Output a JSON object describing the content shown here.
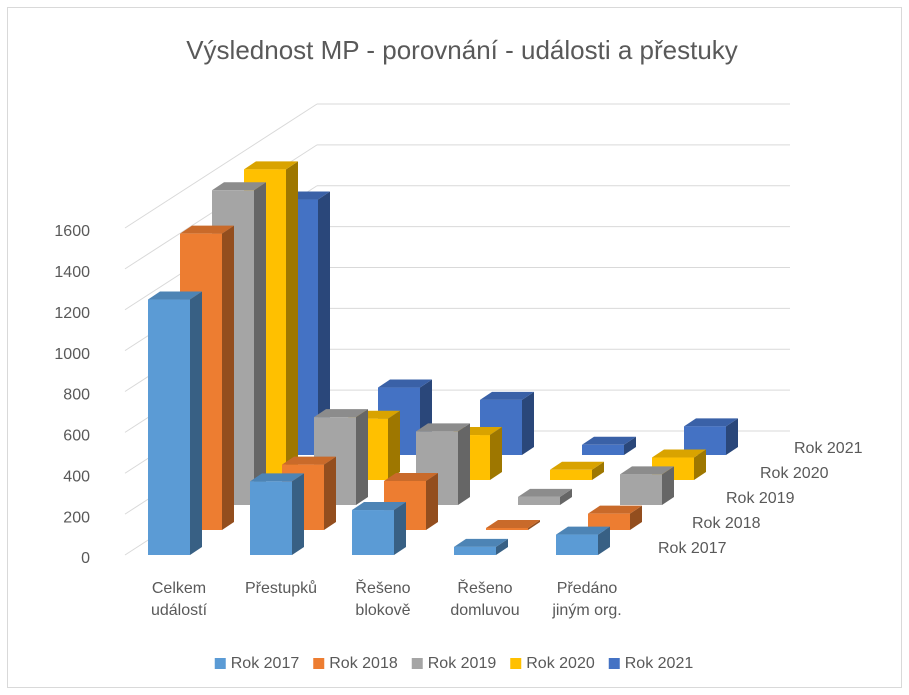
{
  "chart_data": {
    "type": "bar3d",
    "title": "Výslednost MP - porovnání - události a přestuky",
    "categories": [
      "Celkem událostí",
      "Přestupků",
      "Řešeno blokově",
      "Řešeno domluvou",
      "Předáno jiným org."
    ],
    "series": [
      {
        "name": "Rok 2017",
        "color": "#5b9bd5",
        "values": [
          1250,
          360,
          220,
          40,
          100
        ]
      },
      {
        "name": "Rok 2018",
        "color": "#ed7d31",
        "values": [
          1450,
          320,
          240,
          10,
          80
        ]
      },
      {
        "name": "Rok 2019",
        "color": "#a5a5a5",
        "values": [
          1540,
          430,
          360,
          40,
          150
        ]
      },
      {
        "name": "Rok 2020",
        "color": "#ffc000",
        "values": [
          1520,
          300,
          220,
          50,
          110
        ]
      },
      {
        "name": "Rok 2021",
        "color": "#4472c4",
        "values": [
          1250,
          330,
          270,
          50,
          140
        ]
      }
    ],
    "ylim": [
      0,
      1600
    ],
    "yticks": [
      0,
      200,
      400,
      600,
      800,
      1000,
      1200,
      1400,
      1600
    ],
    "grid": true,
    "legend": "bottom"
  }
}
